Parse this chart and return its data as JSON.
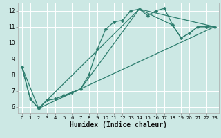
{
  "xlabel": "Humidex (Indice chaleur)",
  "bg_color": "#cce8e4",
  "grid_color": "#ffffff",
  "line_color": "#2d7d6e",
  "xlim": [
    -0.5,
    23.5
  ],
  "ylim": [
    5.6,
    12.5
  ],
  "xticks": [
    0,
    1,
    2,
    3,
    4,
    5,
    6,
    7,
    8,
    9,
    10,
    11,
    12,
    13,
    14,
    15,
    16,
    17,
    18,
    19,
    20,
    21,
    22,
    23
  ],
  "yticks": [
    6,
    7,
    8,
    9,
    10,
    11,
    12
  ],
  "series1_x": [
    0,
    1,
    2,
    3,
    4,
    5,
    6,
    7,
    8,
    9,
    10,
    11,
    12,
    13,
    14,
    15,
    16,
    17,
    18,
    19,
    20,
    21,
    22,
    23
  ],
  "series1_y": [
    8.5,
    6.5,
    5.9,
    6.4,
    6.5,
    6.7,
    6.9,
    7.1,
    8.0,
    9.6,
    10.85,
    11.3,
    11.4,
    12.0,
    12.1,
    11.7,
    12.0,
    12.15,
    11.1,
    10.3,
    10.6,
    11.0,
    11.0,
    11.0
  ],
  "series2_x": [
    0,
    1,
    2,
    3,
    4,
    5,
    6,
    7,
    14,
    18,
    19,
    20,
    21,
    22,
    23
  ],
  "series2_y": [
    8.5,
    6.5,
    5.9,
    6.4,
    6.5,
    6.7,
    6.9,
    7.1,
    12.1,
    11.1,
    10.3,
    10.6,
    11.0,
    11.0,
    11.0
  ],
  "series3_x": [
    0,
    2,
    23
  ],
  "series3_y": [
    8.5,
    5.9,
    11.0
  ],
  "series4_x": [
    2,
    14,
    23
  ],
  "series4_y": [
    5.9,
    12.1,
    11.0
  ],
  "tick_fontsize": 5.5,
  "xlabel_fontsize": 7
}
